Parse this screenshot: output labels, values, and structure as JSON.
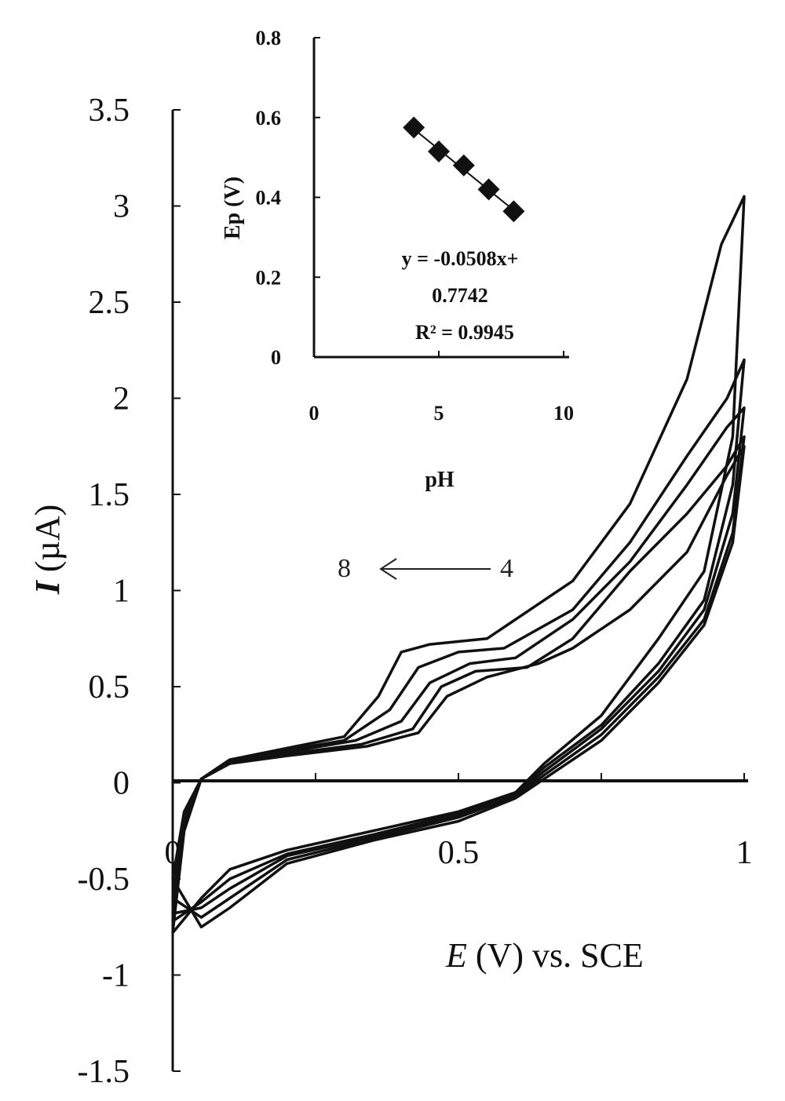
{
  "chart_data": [
    {
      "type": "line",
      "xlabel_italic": "E",
      "xlabel_rest": " (V) vs. SCE",
      "ylabel_italic": "I",
      "ylabel_rest": " (µA)",
      "xlim": [
        0,
        1
      ],
      "ylim": [
        -1.5,
        3.5
      ],
      "x_ticks": [
        "0",
        "0.5",
        "1"
      ],
      "y_ticks": [
        "3.5",
        "3",
        "2.5",
        "2",
        "1.5",
        "1",
        "0.5",
        "0",
        "-0.5",
        "-1",
        "-1.5"
      ],
      "annotation": {
        "left": "8",
        "right": "4"
      },
      "series": [
        {
          "forward": [
            [
              0,
              -0.78
            ],
            [
              0.02,
              -0.25
            ],
            [
              0.05,
              0.02
            ],
            [
              0.1,
              0.12
            ],
            [
              0.2,
              0.18
            ],
            [
              0.3,
              0.24
            ],
            [
              0.36,
              0.45
            ],
            [
              0.4,
              0.68
            ],
            [
              0.45,
              0.72
            ],
            [
              0.55,
              0.75
            ],
            [
              0.7,
              1.05
            ],
            [
              0.8,
              1.45
            ],
            [
              0.9,
              2.1
            ],
            [
              0.96,
              2.8
            ],
            [
              1.0,
              3.05
            ]
          ],
          "reverse": [
            [
              1.0,
              3.05
            ],
            [
              0.98,
              1.8
            ],
            [
              0.93,
              1.1
            ],
            [
              0.85,
              0.75
            ],
            [
              0.75,
              0.35
            ],
            [
              0.65,
              0.1
            ],
            [
              0.6,
              -0.05
            ],
            [
              0.5,
              -0.15
            ],
            [
              0.35,
              -0.25
            ],
            [
              0.2,
              -0.35
            ],
            [
              0.1,
              -0.45
            ],
            [
              0.05,
              -0.6
            ],
            [
              0,
              -0.78
            ]
          ]
        },
        {
          "forward": [
            [
              0,
              -0.72
            ],
            [
              0.02,
              -0.22
            ],
            [
              0.05,
              0.02
            ],
            [
              0.1,
              0.12
            ],
            [
              0.2,
              0.17
            ],
            [
              0.3,
              0.22
            ],
            [
              0.38,
              0.38
            ],
            [
              0.43,
              0.6
            ],
            [
              0.5,
              0.68
            ],
            [
              0.58,
              0.7
            ],
            [
              0.7,
              0.9
            ],
            [
              0.8,
              1.25
            ],
            [
              0.9,
              1.7
            ],
            [
              0.97,
              2.0
            ],
            [
              1.0,
              2.2
            ]
          ],
          "reverse": [
            [
              1.0,
              2.2
            ],
            [
              0.98,
              1.55
            ],
            [
              0.93,
              0.95
            ],
            [
              0.85,
              0.62
            ],
            [
              0.75,
              0.3
            ],
            [
              0.65,
              0.08
            ],
            [
              0.6,
              -0.05
            ],
            [
              0.5,
              -0.16
            ],
            [
              0.35,
              -0.27
            ],
            [
              0.2,
              -0.37
            ],
            [
              0.1,
              -0.5
            ],
            [
              0.05,
              -0.62
            ],
            [
              0,
              -0.72
            ]
          ]
        },
        {
          "forward": [
            [
              0,
              -0.68
            ],
            [
              0.02,
              -0.2
            ],
            [
              0.05,
              0.02
            ],
            [
              0.1,
              0.11
            ],
            [
              0.2,
              0.16
            ],
            [
              0.32,
              0.22
            ],
            [
              0.4,
              0.32
            ],
            [
              0.45,
              0.52
            ],
            [
              0.52,
              0.62
            ],
            [
              0.6,
              0.65
            ],
            [
              0.7,
              0.85
            ],
            [
              0.8,
              1.15
            ],
            [
              0.9,
              1.55
            ],
            [
              0.97,
              1.85
            ],
            [
              1.0,
              1.95
            ]
          ],
          "reverse": [
            [
              1.0,
              1.95
            ],
            [
              0.98,
              1.4
            ],
            [
              0.93,
              0.9
            ],
            [
              0.85,
              0.58
            ],
            [
              0.75,
              0.28
            ],
            [
              0.65,
              0.06
            ],
            [
              0.6,
              -0.06
            ],
            [
              0.5,
              -0.17
            ],
            [
              0.35,
              -0.28
            ],
            [
              0.2,
              -0.38
            ],
            [
              0.1,
              -0.55
            ],
            [
              0.05,
              -0.65
            ],
            [
              0,
              -0.68
            ]
          ]
        },
        {
          "forward": [
            [
              0,
              -0.6
            ],
            [
              0.02,
              -0.18
            ],
            [
              0.05,
              0.02
            ],
            [
              0.1,
              0.1
            ],
            [
              0.2,
              0.15
            ],
            [
              0.33,
              0.2
            ],
            [
              0.42,
              0.28
            ],
            [
              0.47,
              0.5
            ],
            [
              0.53,
              0.58
            ],
            [
              0.62,
              0.6
            ],
            [
              0.7,
              0.75
            ],
            [
              0.8,
              1.1
            ],
            [
              0.9,
              1.4
            ],
            [
              0.97,
              1.65
            ],
            [
              1.0,
              1.8
            ]
          ],
          "reverse": [
            [
              1.0,
              1.8
            ],
            [
              0.98,
              1.3
            ],
            [
              0.93,
              0.85
            ],
            [
              0.85,
              0.55
            ],
            [
              0.75,
              0.25
            ],
            [
              0.65,
              0.04
            ],
            [
              0.6,
              -0.07
            ],
            [
              0.5,
              -0.18
            ],
            [
              0.35,
              -0.29
            ],
            [
              0.2,
              -0.4
            ],
            [
              0.1,
              -0.6
            ],
            [
              0.05,
              -0.7
            ],
            [
              0,
              -0.6
            ]
          ]
        },
        {
          "forward": [
            [
              0,
              -0.5
            ],
            [
              0.02,
              -0.15
            ],
            [
              0.05,
              0.02
            ],
            [
              0.1,
              0.1
            ],
            [
              0.2,
              0.14
            ],
            [
              0.34,
              0.19
            ],
            [
              0.43,
              0.26
            ],
            [
              0.48,
              0.45
            ],
            [
              0.55,
              0.55
            ],
            [
              0.64,
              0.62
            ],
            [
              0.7,
              0.7
            ],
            [
              0.8,
              0.9
            ],
            [
              0.9,
              1.2
            ],
            [
              0.97,
              1.6
            ],
            [
              1.0,
              1.75
            ]
          ],
          "reverse": [
            [
              1.0,
              1.75
            ],
            [
              0.98,
              1.25
            ],
            [
              0.93,
              0.82
            ],
            [
              0.85,
              0.52
            ],
            [
              0.75,
              0.22
            ],
            [
              0.65,
              0.02
            ],
            [
              0.6,
              -0.08
            ],
            [
              0.5,
              -0.2
            ],
            [
              0.35,
              -0.3
            ],
            [
              0.2,
              -0.42
            ],
            [
              0.1,
              -0.65
            ],
            [
              0.05,
              -0.75
            ],
            [
              0,
              -0.5
            ]
          ]
        }
      ]
    },
    {
      "type": "scatter",
      "xlabel": "pH",
      "ylabel": "Ep (V)",
      "xlim": [
        0,
        10
      ],
      "ylim": [
        0,
        0.8
      ],
      "x_ticks": [
        "0",
        "5",
        "10"
      ],
      "y_ticks": [
        "0.8",
        "0.6",
        "0.4",
        "0.2",
        "0"
      ],
      "x": [
        4,
        5,
        6,
        7,
        8
      ],
      "y": [
        0.575,
        0.515,
        0.48,
        0.42,
        0.365
      ],
      "trendline": {
        "slope": -0.0508,
        "intercept": 0.7742
      },
      "equation_line1": "y = -0.0508x+",
      "equation_line2": "0.7742",
      "equation_line3": "R² = 0.9945"
    }
  ]
}
